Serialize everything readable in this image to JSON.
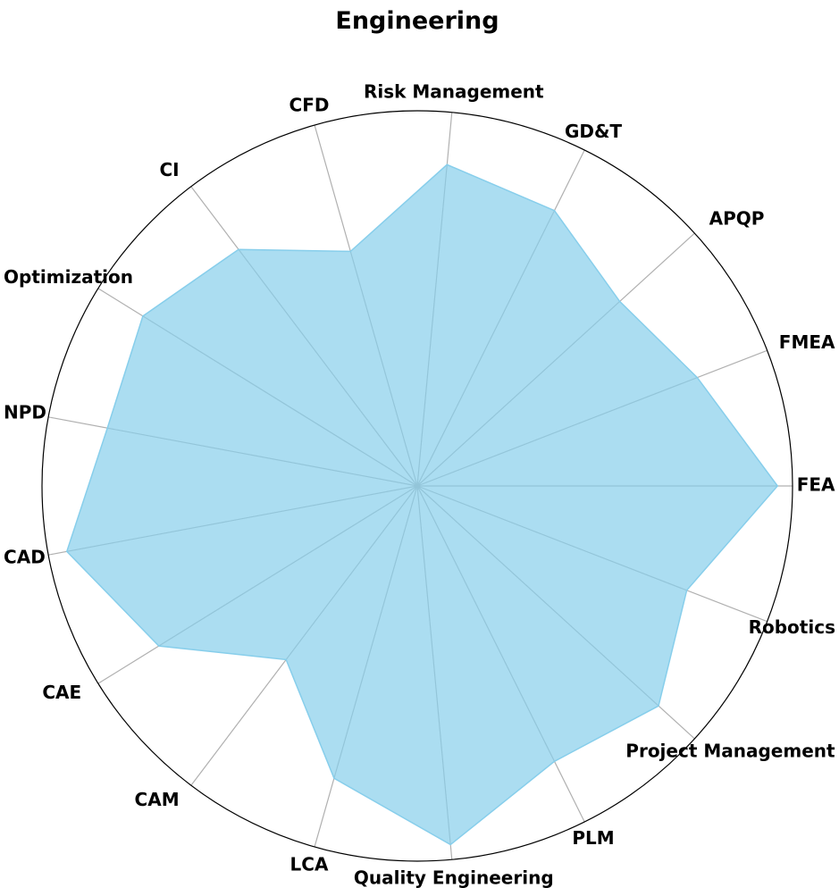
{
  "chart_data": {
    "type": "radar",
    "title": "Engineering",
    "categories": [
      "FEA",
      "FMEA",
      "APQP",
      "GD&T",
      "Risk Management",
      "CFD",
      "CI",
      "Optimization",
      "NPD",
      "CAD",
      "CAE",
      "CAM",
      "LCA",
      "Quality Engineering",
      "PLM",
      "Project Management",
      "Robotics"
    ],
    "values": [
      96,
      80,
      73,
      82,
      86,
      65,
      79,
      86,
      84,
      95,
      81,
      58,
      81,
      96,
      82,
      87,
      77
    ],
    "range": [
      0,
      100
    ],
    "grid": true,
    "fill_color": "#87CEEB",
    "grid_color": "#b0b0b0",
    "outline_color": "#000000"
  }
}
